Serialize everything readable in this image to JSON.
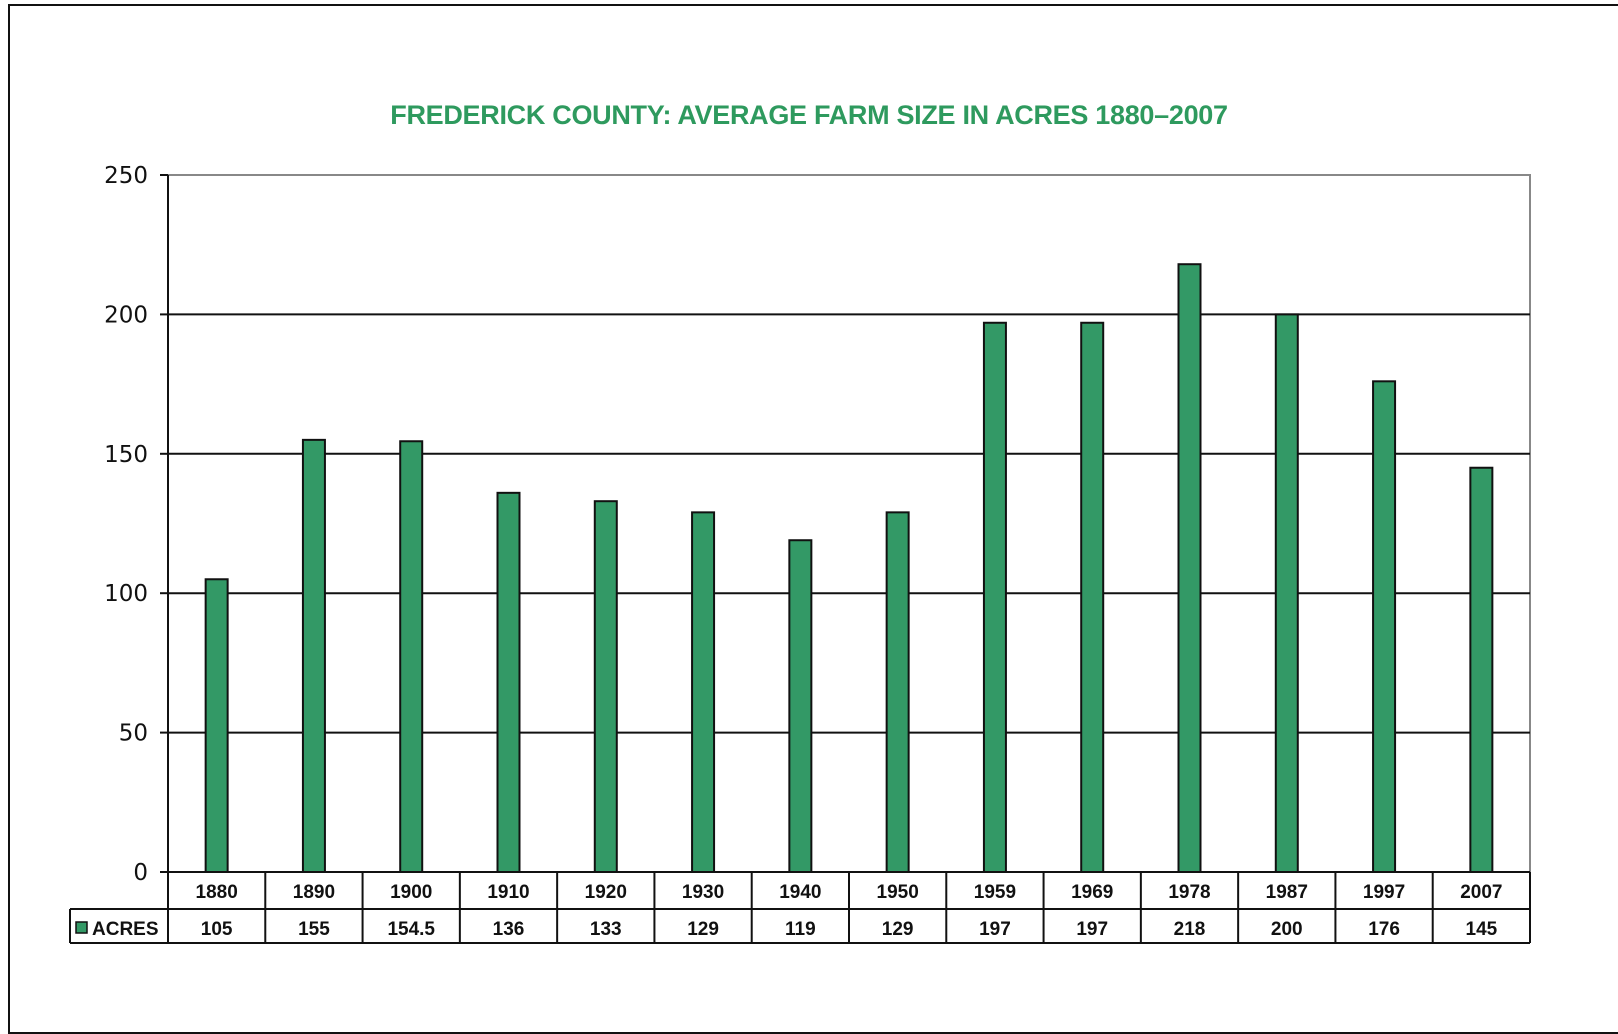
{
  "chart_data": {
    "type": "bar",
    "title": "FREDERICK COUNTY: AVERAGE FARM SIZE IN ACRES 1880–2007",
    "categories": [
      "1880",
      "1890",
      "1900",
      "1910",
      "1920",
      "1930",
      "1940",
      "1950",
      "1959",
      "1969",
      "1978",
      "1987",
      "1997",
      "2007"
    ],
    "series": [
      {
        "name": "ACRES",
        "values": [
          105,
          155,
          154.5,
          136,
          133,
          129,
          119,
          129,
          197,
          197,
          218,
          200,
          176,
          145
        ],
        "labels": [
          "105",
          "155",
          "154.5",
          "136",
          "133",
          "129",
          "119",
          "129",
          "197",
          "197",
          "218",
          "200",
          "176",
          "145"
        ]
      }
    ],
    "yticks": [
      "0",
      "50",
      "100",
      "150",
      "200",
      "250"
    ],
    "ylim": [
      0,
      250
    ],
    "xlabel": "",
    "ylabel": "",
    "grid": true,
    "legend": "data-table-left",
    "colors": {
      "title": "#2e9a5e",
      "bar": "#339966",
      "bar_stroke": "#111111",
      "grid": "#111111",
      "plot_border": "#888888"
    }
  }
}
